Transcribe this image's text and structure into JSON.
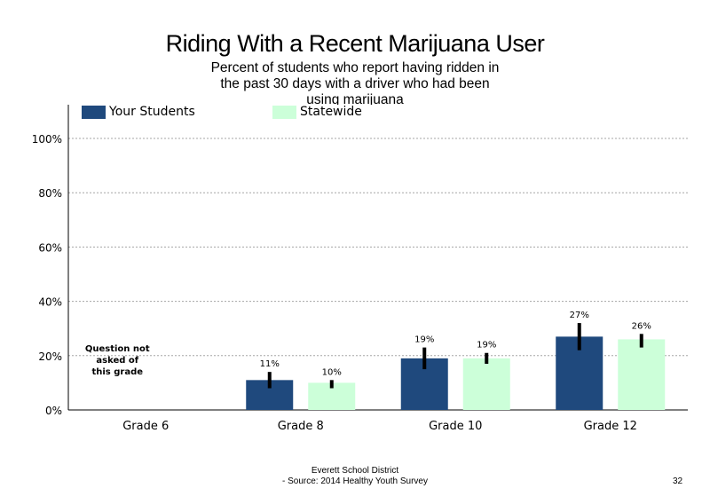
{
  "chart_data": {
    "type": "bar",
    "title": "Riding With a Recent Marijuana User",
    "subtitle": "Percent of students who report having ridden in the past 30 days with a driver who had been using marijuana",
    "categories": [
      "Grade 6",
      "Grade 8",
      "Grade 10",
      "Grade 12"
    ],
    "series": [
      {
        "name": "Your Students",
        "color": "#1f497d",
        "values": [
          null,
          11,
          19,
          27
        ],
        "labels": [
          "",
          "11%",
          "19%",
          "27%"
        ],
        "error_low": [
          null,
          8,
          15,
          22
        ],
        "error_high": [
          null,
          14,
          23,
          32
        ]
      },
      {
        "name": "Statewide",
        "color": "#ccffd9",
        "values": [
          null,
          10,
          19,
          26
        ],
        "labels": [
          "",
          "10%",
          "19%",
          "26%"
        ],
        "error_low": [
          null,
          8,
          17,
          23
        ],
        "error_high": [
          null,
          11,
          21,
          28
        ]
      }
    ],
    "yticks": [
      "0%",
      "20%",
      "40%",
      "60%",
      "80%",
      "100%"
    ],
    "ylim": [
      0,
      100
    ],
    "grid": true,
    "legend_position": "top",
    "annotation": [
      "Question not",
      "asked of",
      "this grade"
    ]
  },
  "footer": {
    "line1": "Everett School District",
    "line2": "- Source: 2014 Healthy  Youth Survey",
    "page": "32"
  }
}
